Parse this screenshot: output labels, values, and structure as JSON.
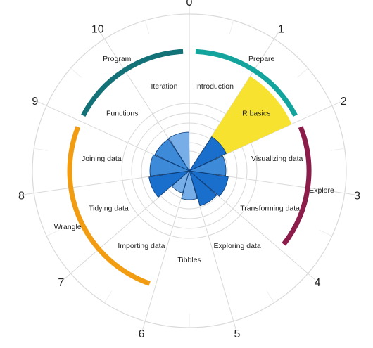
{
  "chart_data": {
    "type": "polar-bar",
    "title": "",
    "ticks": [
      "0",
      "1",
      "2",
      "3",
      "4",
      "5",
      "6",
      "7",
      "8",
      "9",
      "10"
    ],
    "categories": [
      "Introduction",
      "R basics",
      "Visualizing data",
      "Transforming data",
      "Exploring data",
      "Tibbles",
      "Importing data",
      "Tidying data",
      "Joining data",
      "Functions",
      "Iteration"
    ],
    "values": [
      0,
      2.3,
      2.0,
      2.2,
      2.0,
      1.45,
      1.05,
      2.3,
      2.2,
      2.1,
      2.15
    ],
    "rmax": 6,
    "highlight": {
      "category": "R basics",
      "value": 4.1,
      "color": "#f7e22f"
    },
    "phases": [
      {
        "name": "Prepare",
        "from": 0,
        "to": 2,
        "color": "#12a49d"
      },
      {
        "name": "Explore",
        "from": 2,
        "to": 4,
        "color": "#8c1c4a"
      },
      {
        "name": "Wrangle",
        "from": 6,
        "to": 9,
        "color": "#f29c12"
      },
      {
        "name": "Program",
        "from": 9,
        "to": 11,
        "color": "#137178"
      }
    ],
    "grid": true
  },
  "colors": {
    "bar_dark": "#1b6fcc",
    "bar_mid": "#3d8ad9",
    "bar_light": "#77aee8",
    "grid": "#d9d9d9"
  }
}
